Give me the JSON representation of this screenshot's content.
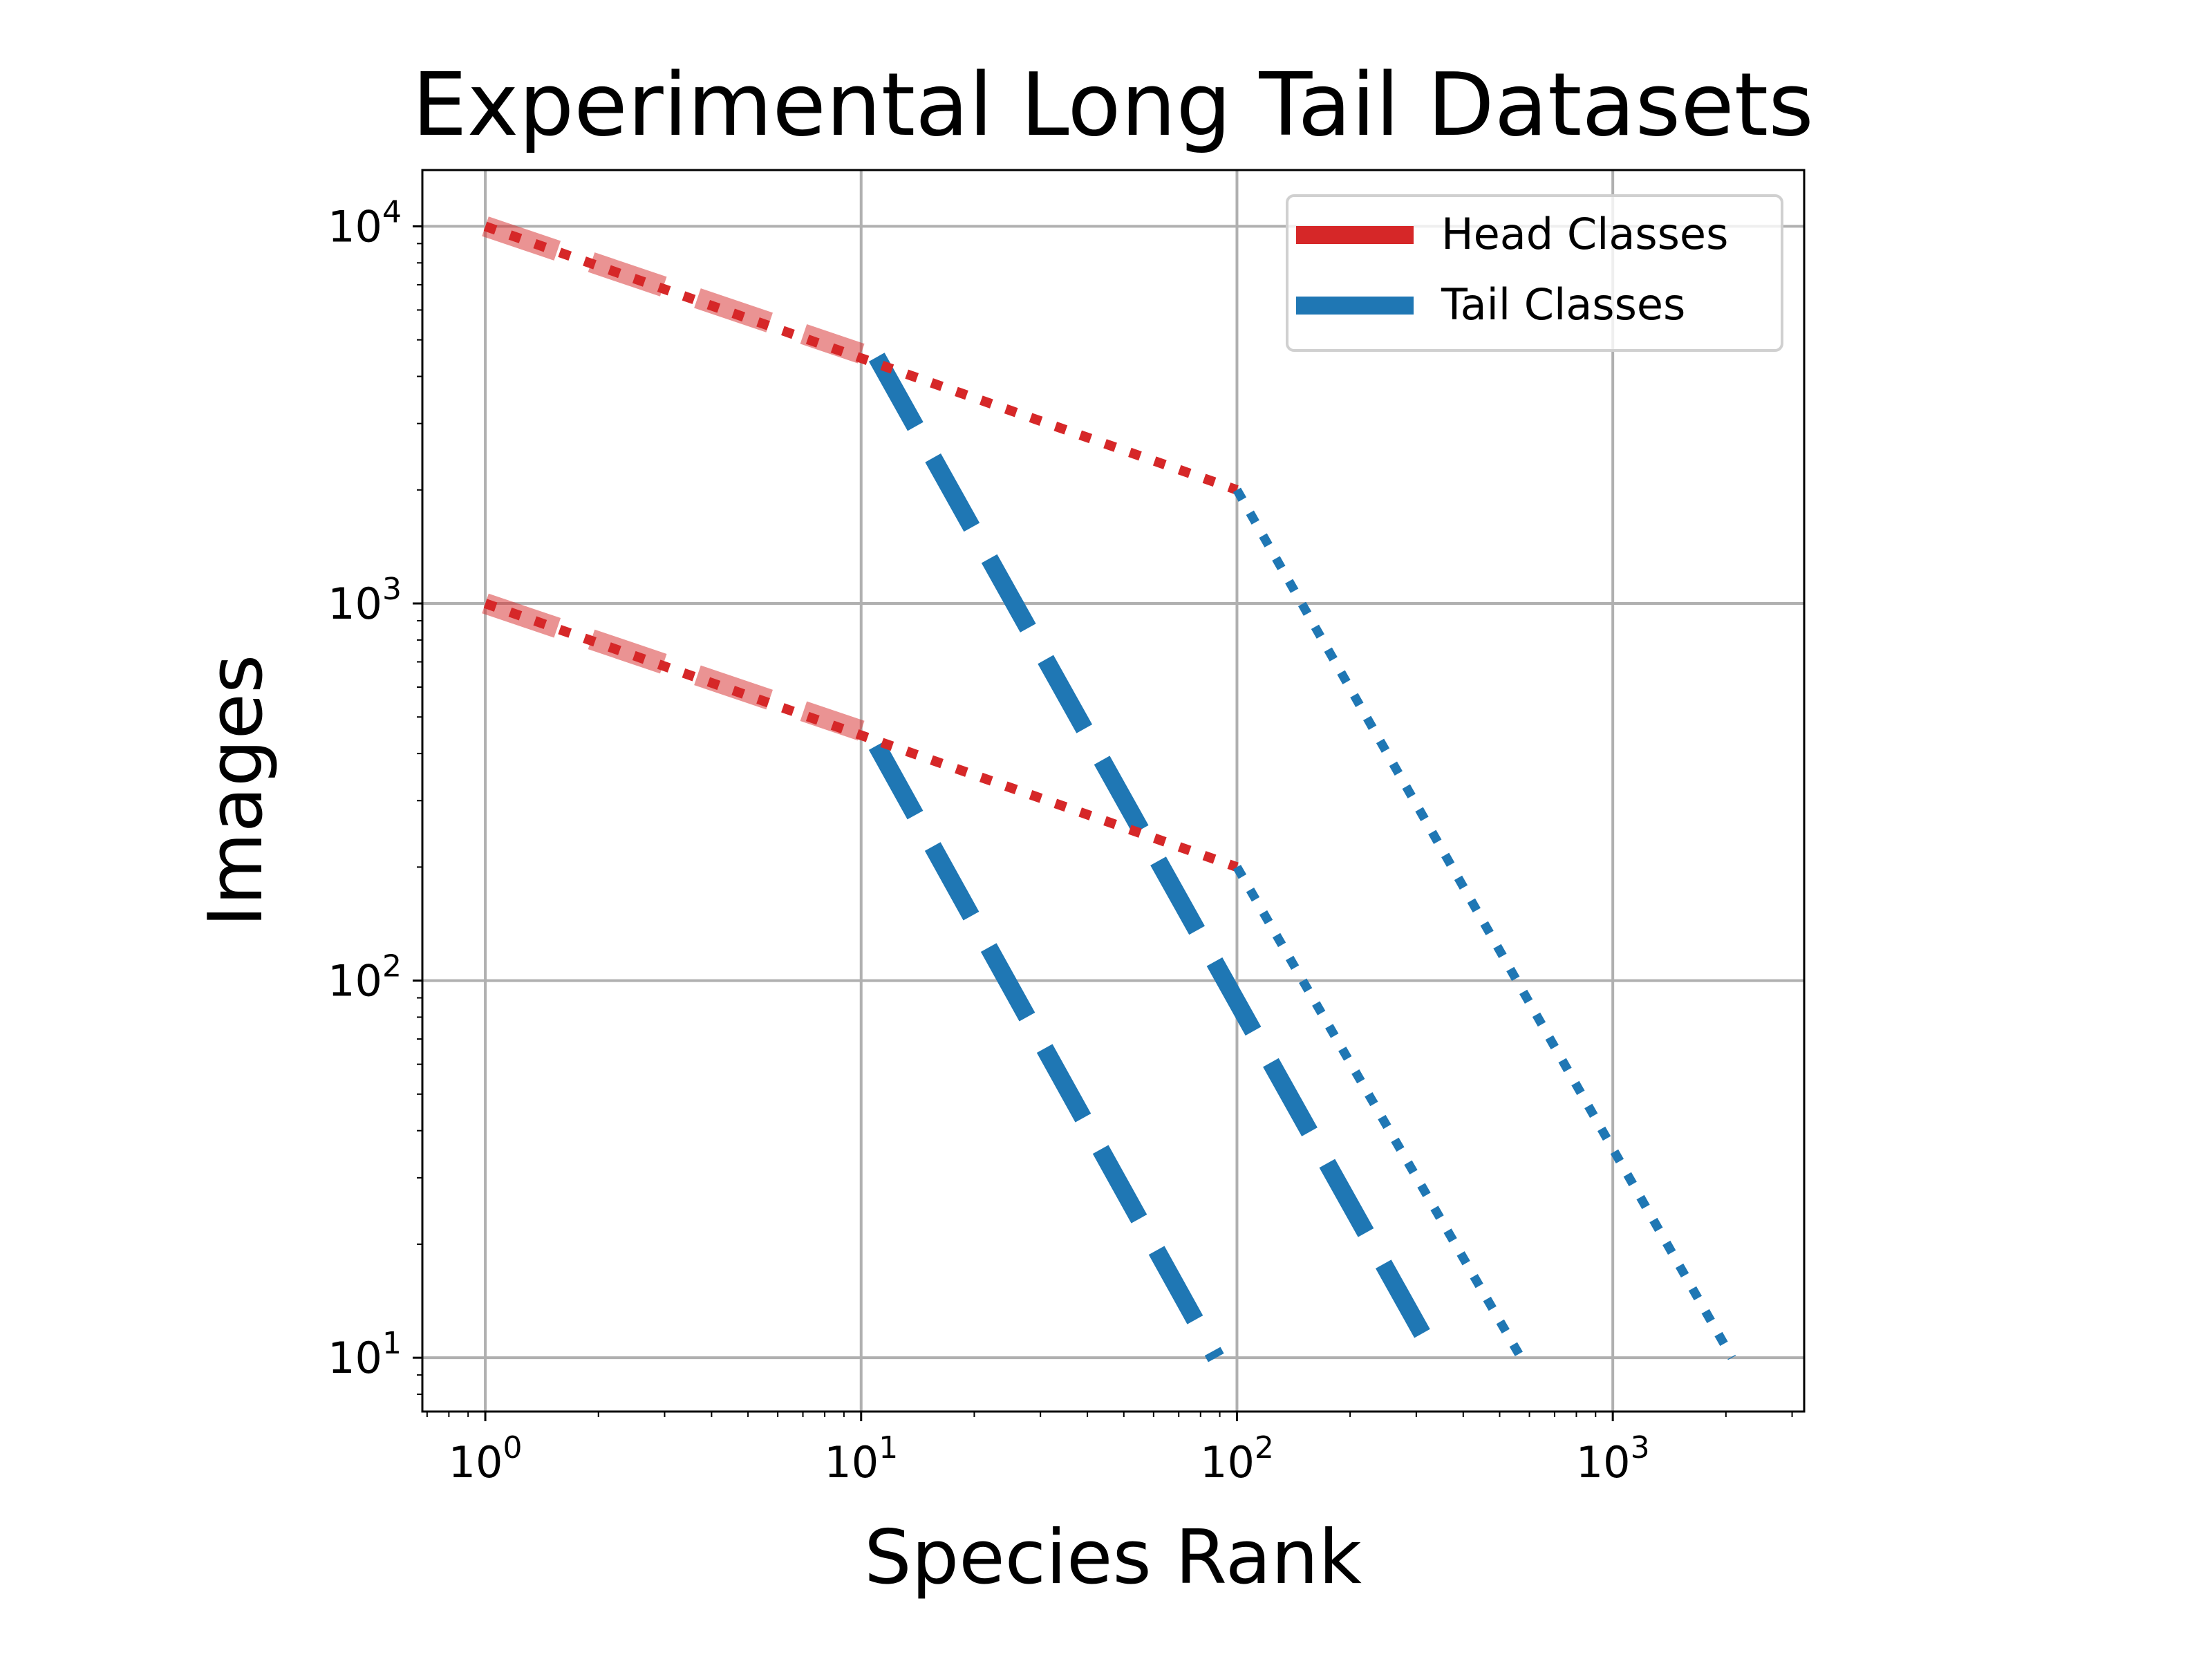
{
  "chart_data": {
    "type": "line",
    "title": "Experimental Long Tail Datasets",
    "xlabel": "Species Rank",
    "ylabel": "Images",
    "xscale": "log",
    "yscale": "log",
    "xlim": [
      0.68,
      3230
    ],
    "ylim": [
      7.2,
      14100
    ],
    "xticks": [
      1,
      10,
      100,
      1000
    ],
    "xtick_labels": [
      {
        "base": "10",
        "exp": "0"
      },
      {
        "base": "10",
        "exp": "1"
      },
      {
        "base": "10",
        "exp": "2"
      },
      {
        "base": "10",
        "exp": "3"
      }
    ],
    "yticks": [
      10,
      100,
      1000,
      10000
    ],
    "ytick_labels": [
      {
        "base": "10",
        "exp": "1"
      },
      {
        "base": "10",
        "exp": "2"
      },
      {
        "base": "10",
        "exp": "3"
      },
      {
        "base": "10",
        "exp": "4"
      }
    ],
    "grid": true,
    "legend": {
      "position": "top-right",
      "entries": [
        {
          "label": "Head Classes",
          "color": "#d62728"
        },
        {
          "label": "Tail Classes",
          "color": "#1f77b4"
        }
      ]
    },
    "colors": {
      "head": "#d62728",
      "tail": "#1f77b4",
      "grid": "#b0b0b0"
    },
    "series": [
      {
        "group": "head",
        "style": "thick-dashed",
        "x": [
          1,
          10
        ],
        "y": [
          10000,
          4600
        ]
      },
      {
        "group": "head",
        "style": "dotted",
        "x": [
          1,
          100
        ],
        "y": [
          10000,
          2000
        ]
      },
      {
        "group": "tail",
        "style": "thick-dashed",
        "x": [
          11,
          338
        ],
        "y": [
          4500,
          10
        ]
      },
      {
        "group": "tail",
        "style": "dotted",
        "x": [
          100,
          2075
        ],
        "y": [
          2000,
          10
        ]
      },
      {
        "group": "head",
        "style": "thick-dashed",
        "x": [
          1,
          10
        ],
        "y": [
          1000,
          460
        ]
      },
      {
        "group": "head",
        "style": "dotted",
        "x": [
          1,
          100
        ],
        "y": [
          1000,
          200
        ]
      },
      {
        "group": "tail",
        "style": "thick-dashed",
        "x": [
          11,
          88
        ],
        "y": [
          420,
          10
        ]
      },
      {
        "group": "tail",
        "style": "dotted",
        "x": [
          100,
          570
        ],
        "y": [
          200,
          10
        ]
      }
    ]
  }
}
